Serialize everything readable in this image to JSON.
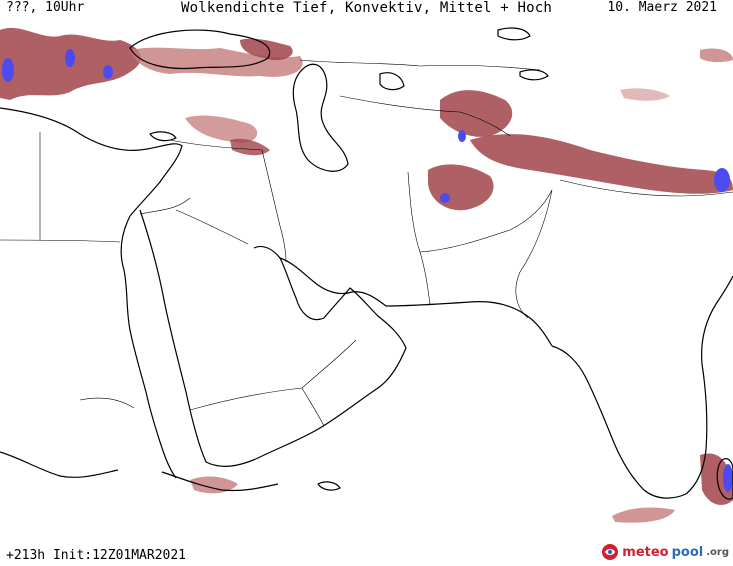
{
  "header": {
    "valid_time": "???, 10Uhr",
    "title": "Wolkendichte  Tief, Konvektiv, Mittel + Hoch",
    "date": "10. Maerz 2021"
  },
  "footer": {
    "run_info": "+213h Init:12Z01MAR2021"
  },
  "brand": {
    "part1": "meteo",
    "part2": "pool",
    "part3": ".org"
  },
  "map": {
    "region": "Middle East / South Asia",
    "colors": {
      "background": "#ffffff",
      "coastline": "#000000",
      "border": "#000000",
      "cloud_low": "#a0444a",
      "cloud_mid": "#c47a7a",
      "cloud_light": "#dba7a7",
      "cloud_high": "#4b4bf0"
    }
  }
}
